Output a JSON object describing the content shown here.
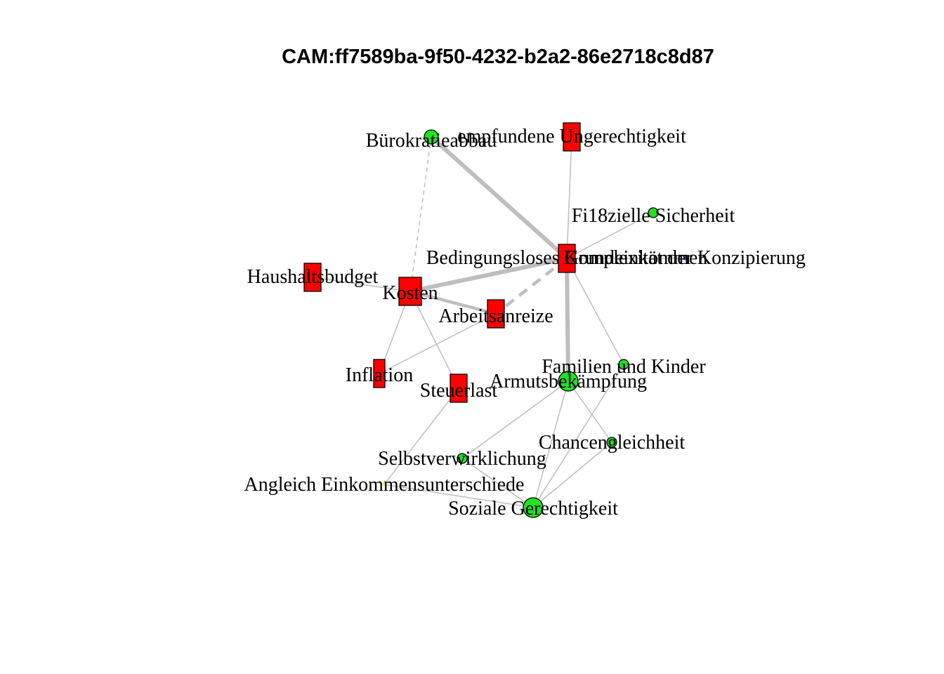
{
  "title": "CAM:ff7589ba-9f50-4232-b2a2-86e2718c8d87",
  "colors": {
    "negative": "#ff0000",
    "positive": "#22e022",
    "neutral": "#ffff00",
    "ambivalent": "#a020f0",
    "edge": "#bebebe"
  },
  "nodes": [
    {
      "id": "buerokratieabbau",
      "label": "Bürokratieabbau",
      "valence": "positive",
      "shape": "circle",
      "size": "small"
    },
    {
      "id": "empfundene-ungerechtigkeit",
      "label": "empfundene Ungerechtigkeit",
      "valence": "negative",
      "shape": "rect",
      "size": "medium"
    },
    {
      "id": "finanzielle-sicherheit",
      "label": "Fi18zielle Sicherheit",
      "valence": "positive",
      "shape": "circle",
      "size": "tiny"
    },
    {
      "id": "bge",
      "label": "Bedingungsloses Grundeinkommen",
      "valence": "negative",
      "shape": "rect",
      "size": "medium"
    },
    {
      "id": "komplexitaet",
      "label": "Komplexität der Konzipierung",
      "valence": "ambivalent",
      "shape": "dot",
      "size": "dot"
    },
    {
      "id": "haushaltsbudget",
      "label": "Haushaltsbudget",
      "valence": "negative",
      "shape": "rect",
      "size": "medium"
    },
    {
      "id": "kosten",
      "label": "Kosten",
      "valence": "negative",
      "shape": "rect",
      "size": "large"
    },
    {
      "id": "arbeitsanreize",
      "label": "Arbeitsanreize",
      "valence": "negative",
      "shape": "rect",
      "size": "medium"
    },
    {
      "id": "inflation",
      "label": "Inflation",
      "valence": "negative",
      "shape": "rect",
      "size": "small"
    },
    {
      "id": "steuerlast",
      "label": "Steuerlast",
      "valence": "negative",
      "shape": "rect",
      "size": "medium"
    },
    {
      "id": "familien-kinder",
      "label": "Familien und Kinder",
      "valence": "positive",
      "shape": "circle",
      "size": "tiny"
    },
    {
      "id": "armutsbekaempfung",
      "label": "Armutsbekämpfung",
      "valence": "positive",
      "shape": "circle",
      "size": "medium"
    },
    {
      "id": "chancengleichheit",
      "label": "Chancengleichheit",
      "valence": "positive",
      "shape": "circle",
      "size": "tiny"
    },
    {
      "id": "selbstverwirklichung",
      "label": "Selbstverwirklichung",
      "valence": "positive",
      "shape": "circle",
      "size": "tiny"
    },
    {
      "id": "angleich",
      "label": "Angleich Einkommensunterschiede",
      "valence": "neutral",
      "shape": "dot",
      "size": "dot"
    },
    {
      "id": "soziale-gerechtigkeit",
      "label": "Soziale Gerechtigkeit",
      "valence": "positive",
      "shape": "circle",
      "size": "medium"
    }
  ],
  "edges": [
    {
      "from": "buerokratieabbau",
      "to": "bge",
      "weight": "thick",
      "style": "solid"
    },
    {
      "from": "buerokratieabbau",
      "to": "kosten",
      "weight": "thin",
      "style": "dashed"
    },
    {
      "from": "empfundene-ungerechtigkeit",
      "to": "bge",
      "weight": "thin",
      "style": "solid"
    },
    {
      "from": "finanzielle-sicherheit",
      "to": "bge",
      "weight": "thin",
      "style": "solid"
    },
    {
      "from": "bge",
      "to": "komplexitaet",
      "weight": "thin",
      "style": "solid"
    },
    {
      "from": "bge",
      "to": "kosten",
      "weight": "thick",
      "style": "solid"
    },
    {
      "from": "bge",
      "to": "arbeitsanreize",
      "weight": "medium",
      "style": "dashed"
    },
    {
      "from": "bge",
      "to": "armutsbekaempfung",
      "weight": "thick",
      "style": "solid"
    },
    {
      "from": "bge",
      "to": "familien-kinder",
      "weight": "thin",
      "style": "solid"
    },
    {
      "from": "haushaltsbudget",
      "to": "kosten",
      "weight": "thin",
      "style": "solid"
    },
    {
      "from": "kosten",
      "to": "arbeitsanreize",
      "weight": "medium",
      "style": "solid"
    },
    {
      "from": "kosten",
      "to": "inflation",
      "weight": "thin",
      "style": "solid"
    },
    {
      "from": "kosten",
      "to": "steuerlast",
      "weight": "thin",
      "style": "solid"
    },
    {
      "from": "arbeitsanreize",
      "to": "inflation",
      "weight": "thin",
      "style": "solid"
    },
    {
      "from": "steuerlast",
      "to": "angleich",
      "weight": "thin",
      "style": "solid"
    },
    {
      "from": "armutsbekaempfung",
      "to": "selbstverwirklichung",
      "weight": "thin",
      "style": "solid"
    },
    {
      "from": "armutsbekaempfung",
      "to": "chancengleichheit",
      "weight": "thin",
      "style": "solid"
    },
    {
      "from": "familien-kinder",
      "to": "soziale-gerechtigkeit",
      "weight": "thin",
      "style": "solid"
    },
    {
      "from": "armutsbekaempfung",
      "to": "soziale-gerechtigkeit",
      "weight": "thin",
      "style": "solid"
    },
    {
      "from": "chancengleichheit",
      "to": "soziale-gerechtigkeit",
      "weight": "thin",
      "style": "solid"
    },
    {
      "from": "selbstverwirklichung",
      "to": "soziale-gerechtigkeit",
      "weight": "thin",
      "style": "solid"
    },
    {
      "from": "angleich",
      "to": "soziale-gerechtigkeit",
      "weight": "thin",
      "style": "solid"
    }
  ]
}
